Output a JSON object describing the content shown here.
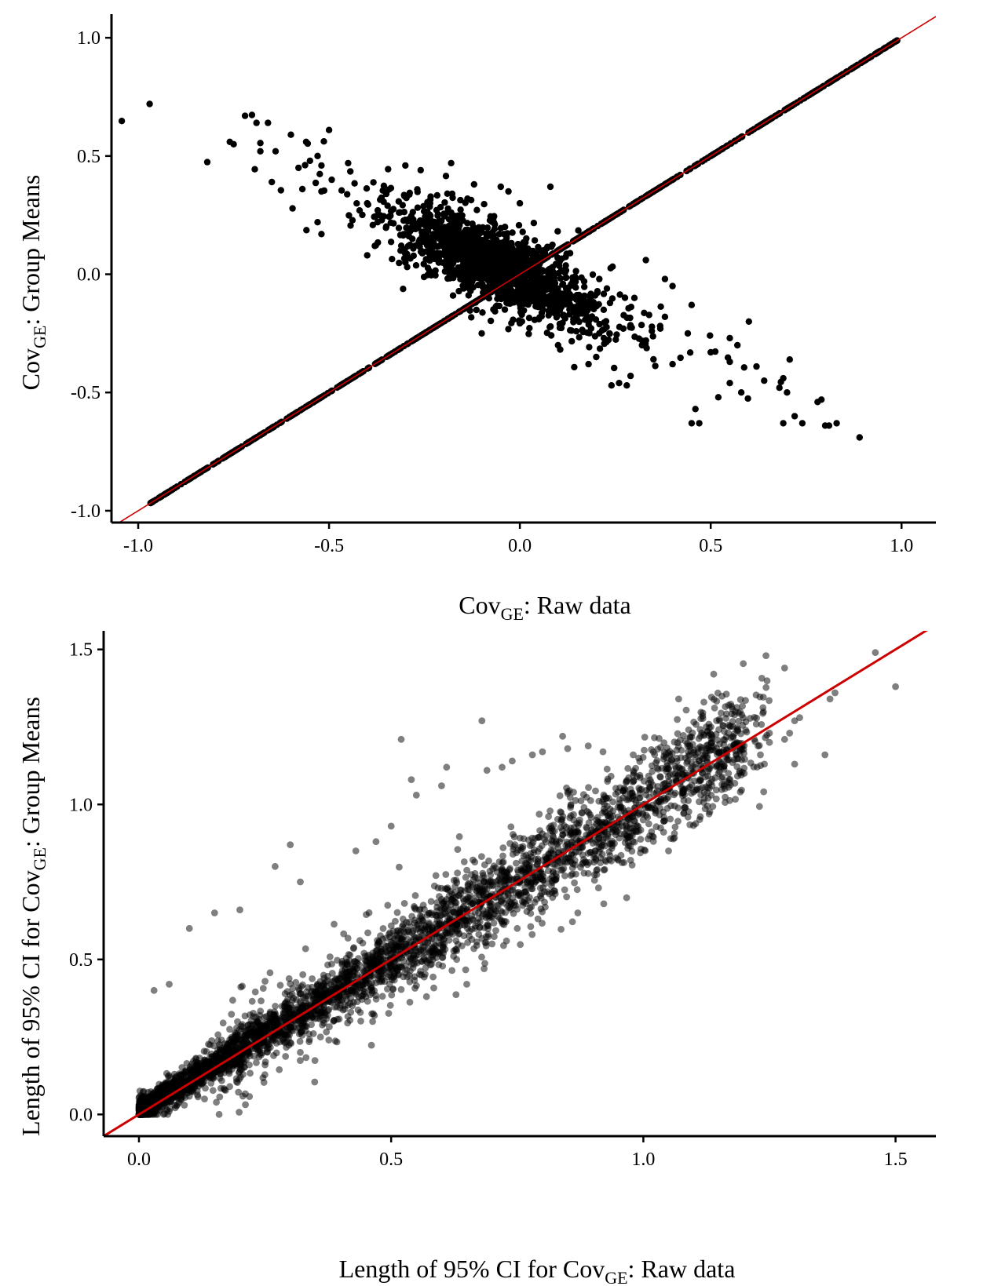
{
  "chart_data": [
    {
      "type": "scatter",
      "title": "",
      "xlabel": {
        "main": "Cov",
        "sub": "GE",
        "rest": ": Raw data"
      },
      "ylabel": {
        "main": "Cov",
        "sub": "GE",
        "rest": ": Group Means"
      },
      "xlim": [
        -1.07,
        1.09
      ],
      "ylim": [
        -1.05,
        1.1
      ],
      "xticks": [
        -1.0,
        -0.5,
        0.0,
        0.5,
        1.0
      ],
      "yticks": [
        -1.0,
        -0.5,
        0.0,
        0.5,
        1.0
      ],
      "xtick_labels": [
        "-1.0",
        "-0.5",
        "0.0",
        "0.5",
        "1.0"
      ],
      "ytick_labels": [
        "-1.0",
        "-0.5",
        "0.0",
        "0.5",
        "1.0"
      ],
      "grid": false,
      "reference_line": {
        "slope": 1,
        "intercept": 0,
        "color": "#cc0000"
      },
      "point_color": "#000000",
      "point_opacity": 1.0,
      "distribution": {
        "diagonal_points": "many points on y = x spanning x from -0.97 to 0.99",
        "cluster_center": [
          -0.05,
          0.03
        ],
        "trend": "negative, about y = -0.72x"
      },
      "points": [
        [
          -0.97,
          0.72
        ],
        [
          -0.76,
          0.56
        ],
        [
          -0.75,
          0.55
        ],
        [
          -0.72,
          0.67
        ],
        [
          -0.69,
          0.64
        ],
        [
          -0.66,
          0.64
        ],
        [
          -0.68,
          0.52
        ],
        [
          -0.64,
          0.52
        ],
        [
          -0.6,
          0.59
        ],
        [
          -0.56,
          0.56
        ],
        [
          -0.5,
          0.61
        ],
        [
          -0.53,
          0.5
        ],
        [
          -0.55,
          0.48
        ],
        [
          -0.52,
          0.46
        ],
        [
          -0.45,
          0.47
        ],
        [
          -0.58,
          0.45
        ],
        [
          -0.65,
          0.39
        ],
        [
          -0.57,
          0.36
        ],
        [
          -0.52,
          0.35
        ],
        [
          -0.53,
          0.22
        ],
        [
          -0.52,
          0.17
        ],
        [
          -0.4,
          0.3
        ],
        [
          -0.35,
          0.34
        ],
        [
          -0.42,
          0.27
        ],
        [
          -0.3,
          0.46
        ],
        [
          -0.26,
          0.44
        ],
        [
          -0.18,
          0.47
        ],
        [
          -0.12,
          0.38
        ],
        [
          -0.05,
          0.37
        ],
        [
          -0.03,
          0.35
        ],
        [
          0.08,
          0.37
        ],
        [
          0.0,
          0.3
        ],
        [
          -0.2,
          0.19
        ],
        [
          -0.4,
          0.08
        ],
        [
          -0.38,
          0.12
        ],
        [
          -0.3,
          0.05
        ],
        [
          -0.14,
          0.07
        ],
        [
          -0.22,
          0.12
        ],
        [
          -0.28,
          0.21
        ],
        [
          0.33,
          0.06
        ],
        [
          0.38,
          -0.02
        ],
        [
          0.4,
          -0.05
        ],
        [
          0.3,
          -0.1
        ],
        [
          0.45,
          -0.13
        ],
        [
          0.38,
          -0.18
        ],
        [
          0.44,
          -0.25
        ],
        [
          0.55,
          -0.27
        ],
        [
          0.6,
          -0.2
        ],
        [
          0.57,
          -0.3
        ],
        [
          0.5,
          -0.33
        ],
        [
          0.55,
          -0.37
        ],
        [
          0.62,
          -0.39
        ],
        [
          0.64,
          -0.45
        ],
        [
          0.58,
          -0.5
        ],
        [
          0.52,
          -0.52
        ],
        [
          0.55,
          -0.46
        ],
        [
          0.46,
          -0.57
        ],
        [
          0.47,
          -0.63
        ],
        [
          0.45,
          -0.63
        ],
        [
          0.69,
          -0.44
        ],
        [
          0.68,
          -0.48
        ],
        [
          0.7,
          -0.5
        ],
        [
          0.72,
          -0.6
        ],
        [
          0.69,
          -0.63
        ],
        [
          0.74,
          -0.63
        ],
        [
          0.79,
          -0.53
        ],
        [
          0.78,
          -0.54
        ],
        [
          0.8,
          -0.64
        ],
        [
          0.81,
          -0.64
        ],
        [
          0.83,
          -0.63
        ],
        [
          0.89,
          -0.69
        ],
        [
          0.24,
          -0.47
        ],
        [
          0.28,
          -0.47
        ],
        [
          0.29,
          -0.43
        ],
        [
          0.35,
          -0.36
        ],
        [
          0.1,
          -0.3
        ],
        [
          0.2,
          -0.35
        ],
        [
          0.18,
          -0.38
        ],
        [
          0.22,
          -0.27
        ],
        [
          -0.1,
          -0.25
        ],
        [
          0.05,
          -0.19
        ],
        [
          0.26,
          -0.46
        ],
        [
          0.4,
          -0.38
        ],
        [
          0.32,
          -0.3
        ]
      ]
    },
    {
      "type": "scatter",
      "title": "",
      "xlabel": {
        "main": "Length of 95% CI for Cov",
        "sub": "GE",
        "rest": ": Raw data"
      },
      "ylabel": {
        "main": "Length of 95% CI for Cov",
        "sub": "GE",
        "rest": ": Group Means"
      },
      "xlim": [
        -0.07,
        1.58
      ],
      "ylim": [
        -0.07,
        1.56
      ],
      "xticks": [
        0.0,
        0.5,
        1.0,
        1.5
      ],
      "yticks": [
        0.0,
        0.5,
        1.0,
        1.5
      ],
      "xtick_labels": [
        "0.0",
        "0.5",
        "1.0",
        "1.5"
      ],
      "ytick_labels": [
        "0.0",
        "0.5",
        "1.0",
        "1.5"
      ],
      "grid": false,
      "reference_line": {
        "slope": 1,
        "intercept": 0,
        "color": "#cc0000"
      },
      "point_color": "#000000",
      "point_opacity": 0.5,
      "distribution": {
        "range": "x from 0.0 to 1.51, y from 0.0 to 1.49",
        "trend": "positive, close to y = x; densest below x = 0.5"
      },
      "points": [
        [
          0.52,
          1.21
        ],
        [
          0.68,
          1.27
        ],
        [
          1.07,
          1.34
        ],
        [
          1.12,
          1.33
        ],
        [
          1.28,
          1.44
        ],
        [
          1.46,
          1.49
        ],
        [
          1.5,
          1.38
        ],
        [
          1.38,
          1.36
        ],
        [
          1.37,
          1.34
        ],
        [
          1.31,
          1.28
        ],
        [
          1.3,
          1.27
        ],
        [
          1.29,
          1.23
        ],
        [
          1.22,
          1.21
        ],
        [
          1.23,
          1.19
        ],
        [
          1.25,
          1.2
        ],
        [
          1.28,
          1.21
        ],
        [
          1.36,
          1.16
        ],
        [
          1.3,
          1.13
        ],
        [
          1.24,
          1.13
        ],
        [
          1.2,
          1.1
        ],
        [
          1.15,
          1.12
        ],
        [
          1.17,
          1.07
        ],
        [
          1.1,
          1.04
        ],
        [
          1.07,
          1.12
        ],
        [
          0.98,
          1.16
        ],
        [
          0.92,
          1.17
        ],
        [
          0.84,
          1.22
        ],
        [
          0.85,
          1.18
        ],
        [
          0.8,
          1.17
        ],
        [
          0.78,
          1.16
        ],
        [
          0.74,
          1.14
        ],
        [
          0.72,
          1.12
        ],
        [
          0.69,
          1.11
        ],
        [
          0.61,
          1.12
        ],
        [
          0.6,
          1.06
        ],
        [
          0.55,
          1.03
        ],
        [
          0.54,
          1.08
        ],
        [
          0.5,
          0.93
        ],
        [
          0.47,
          0.88
        ],
        [
          0.43,
          0.85
        ],
        [
          0.3,
          0.87
        ],
        [
          0.27,
          0.8
        ],
        [
          0.32,
          0.75
        ],
        [
          0.15,
          0.65
        ],
        [
          0.2,
          0.66
        ],
        [
          0.1,
          0.6
        ],
        [
          0.06,
          0.42
        ],
        [
          0.03,
          0.4
        ],
        [
          0.65,
          0.42
        ],
        [
          0.57,
          0.38
        ],
        [
          0.42,
          0.33
        ],
        [
          0.36,
          0.25
        ],
        [
          0.32,
          0.2
        ],
        [
          0.25,
          0.16
        ],
        [
          0.18,
          0.09
        ],
        [
          0.13,
          0.05
        ],
        [
          0.09,
          0.03
        ],
        [
          0.06,
          0.01
        ],
        [
          1.05,
          0.85
        ],
        [
          0.95,
          0.82
        ],
        [
          0.87,
          0.65
        ],
        [
          0.82,
          0.7
        ],
        [
          0.75,
          0.6
        ],
        [
          0.7,
          0.55
        ],
        [
          0.63,
          0.5
        ],
        [
          0.56,
          0.45
        ]
      ],
      "dense_band": [
        [
          0.02,
          0.03
        ],
        [
          0.05,
          0.06
        ],
        [
          0.08,
          0.1
        ],
        [
          0.11,
          0.12
        ],
        [
          0.14,
          0.15
        ],
        [
          0.17,
          0.18
        ],
        [
          0.2,
          0.21
        ],
        [
          0.23,
          0.24
        ],
        [
          0.26,
          0.28
        ],
        [
          0.3,
          0.31
        ],
        [
          0.34,
          0.35
        ],
        [
          0.38,
          0.39
        ],
        [
          0.42,
          0.44
        ],
        [
          0.46,
          0.47
        ],
        [
          0.5,
          0.52
        ],
        [
          0.55,
          0.56
        ],
        [
          0.6,
          0.61
        ],
        [
          0.65,
          0.66
        ],
        [
          0.7,
          0.71
        ],
        [
          0.75,
          0.76
        ],
        [
          0.8,
          0.82
        ],
        [
          0.85,
          0.86
        ],
        [
          0.9,
          0.91
        ],
        [
          0.95,
          0.96
        ],
        [
          1.0,
          1.0
        ],
        [
          1.05,
          1.06
        ],
        [
          1.1,
          1.1
        ],
        [
          1.15,
          1.14
        ],
        [
          1.2,
          1.19
        ],
        [
          1.25,
          1.23
        ]
      ]
    }
  ]
}
